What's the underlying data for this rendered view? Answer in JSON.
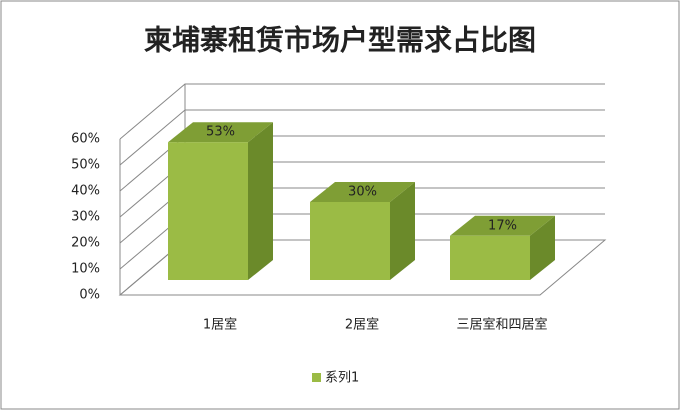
{
  "chart_data": {
    "type": "bar3d",
    "title": "柬埔寨租赁市场户型需求占比图",
    "categories": [
      "1居室",
      "2居室",
      "三居室和四居室"
    ],
    "series": [
      {
        "name": "系列1",
        "color": "#9bbb45",
        "values": [
          53,
          30,
          17
        ],
        "value_labels": [
          "53%",
          "30%",
          "17%"
        ]
      }
    ],
    "ylim": [
      0,
      60
    ],
    "yticks": [
      {
        "value": 0,
        "label": "0%"
      },
      {
        "value": 10,
        "label": "10%"
      },
      {
        "value": 20,
        "label": "20%"
      },
      {
        "value": 30,
        "label": "30%"
      },
      {
        "value": 40,
        "label": "40%"
      },
      {
        "value": 50,
        "label": "50%"
      },
      {
        "value": 60,
        "label": "60%"
      }
    ],
    "grid": true,
    "legend": "bottom"
  }
}
